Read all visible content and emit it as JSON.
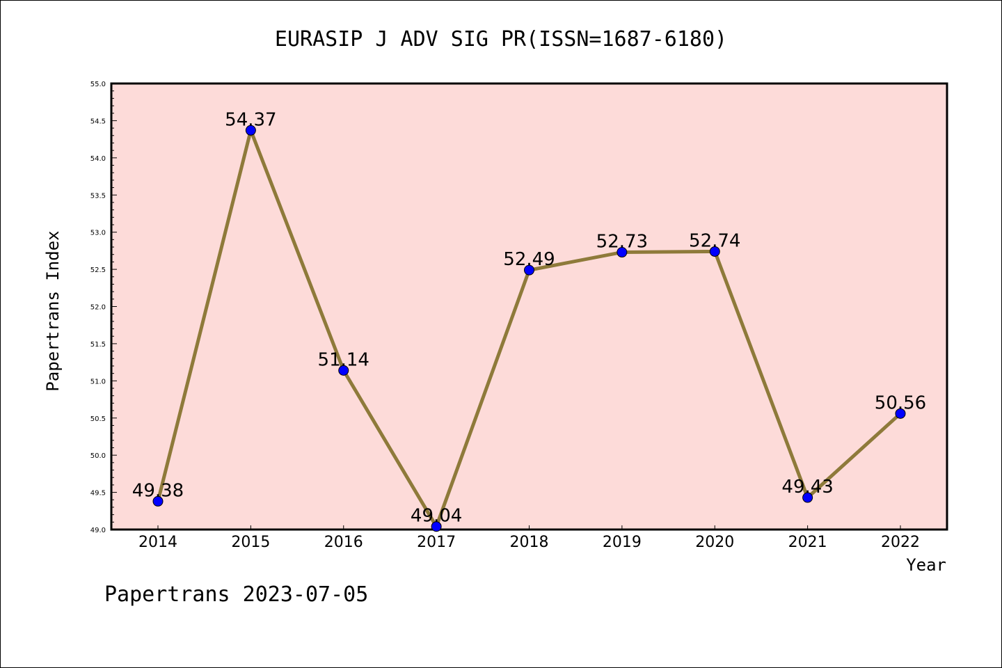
{
  "chart_data": {
    "type": "line",
    "title": "EURASIP J ADV SIG PR(ISSN=1687-6180)",
    "xlabel": "Year",
    "ylabel": "Papertrans Index",
    "categories": [
      "2014",
      "2015",
      "2016",
      "2017",
      "2018",
      "2019",
      "2020",
      "2021",
      "2022"
    ],
    "values": [
      49.38,
      54.37,
      51.14,
      49.04,
      52.49,
      52.73,
      52.74,
      49.43,
      50.56
    ],
    "data_labels": [
      "49.38",
      "54.37",
      "51.14",
      "49.04",
      "52.49",
      "52.73",
      "52.74",
      "49.43",
      "50.56"
    ],
    "ylim": [
      49.0,
      55.0
    ],
    "y_ticks": [
      "49.0",
      "49.5",
      "50.0",
      "50.5",
      "51.0",
      "51.5",
      "52.0",
      "52.5",
      "53.0",
      "53.5",
      "54.0",
      "54.5",
      "55.0"
    ],
    "grid": false,
    "colors": {
      "plot_background": "#fddbd9",
      "line": "#8e7a3a",
      "marker": "#0000ff"
    }
  },
  "footer": {
    "source_text": "Papertrans 2023-07-05"
  }
}
